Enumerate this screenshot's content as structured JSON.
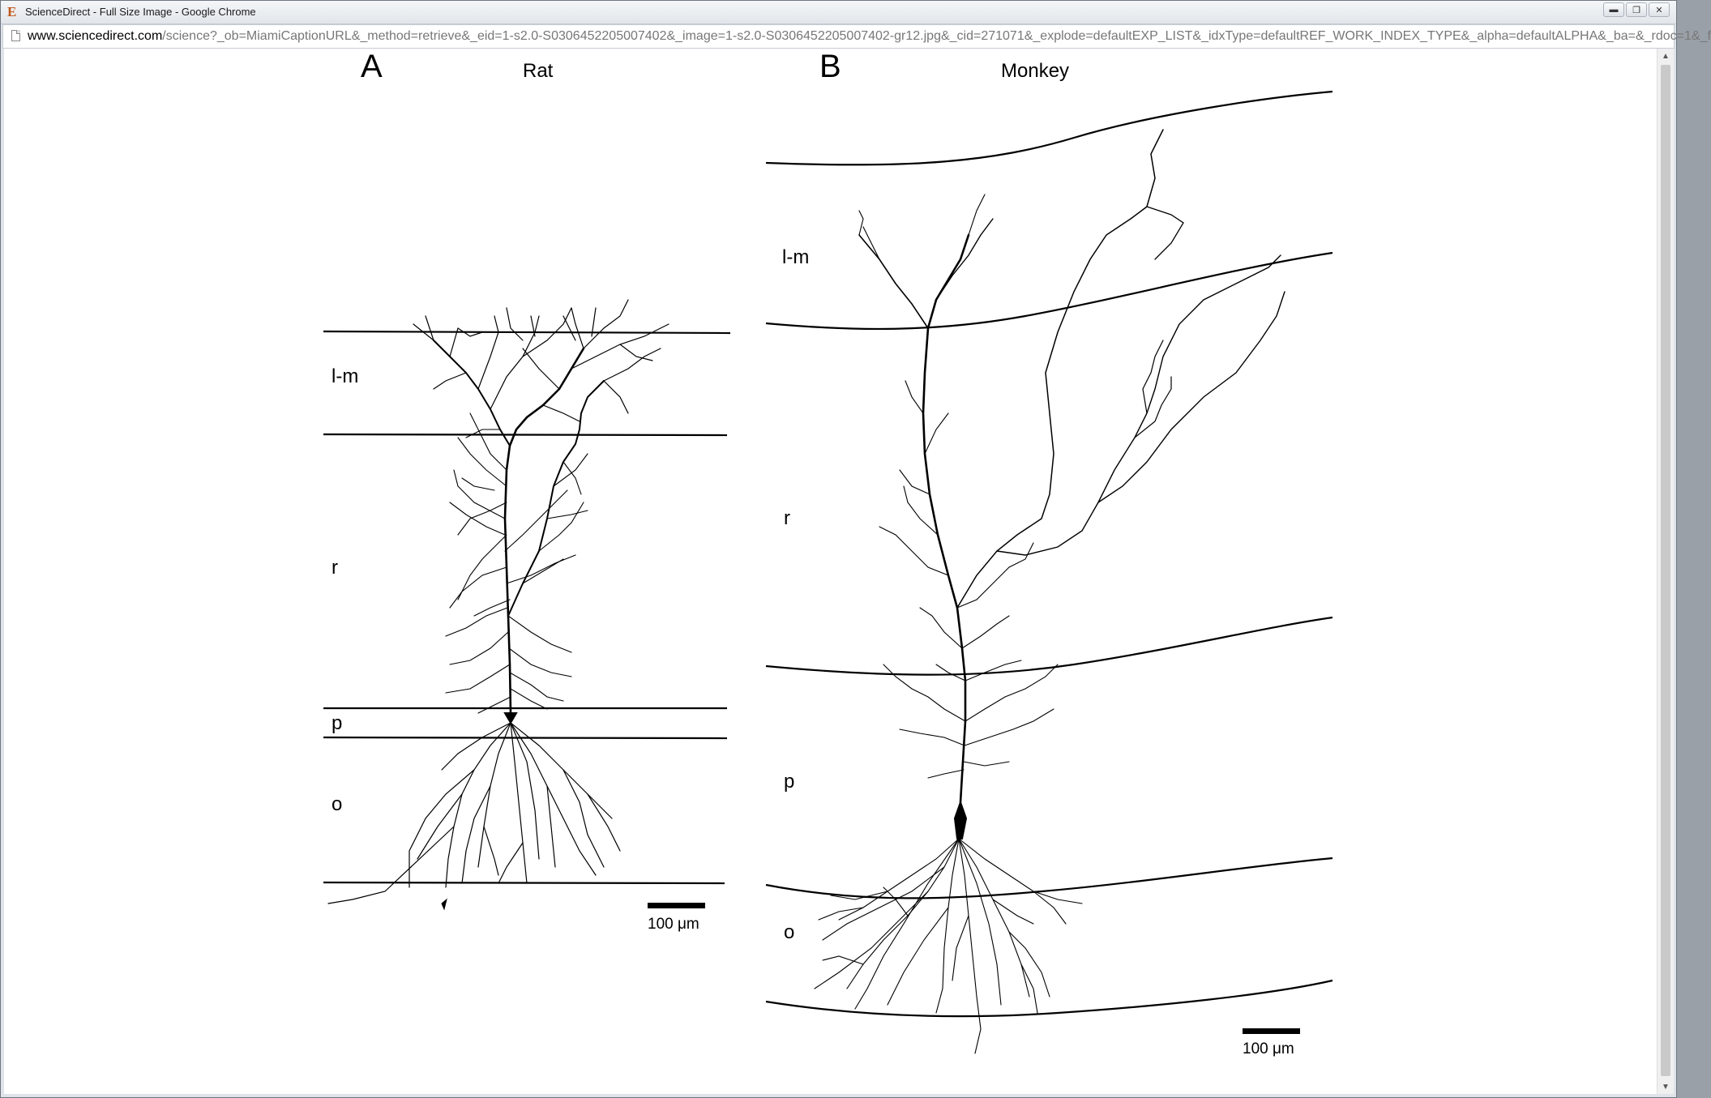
{
  "window": {
    "title": "ScienceDirect - Full Size Image - Google Chrome",
    "app_icon": "E",
    "minimize_icon": "minimize-icon",
    "restore_icon": "restore-icon",
    "close_icon": "close-icon"
  },
  "address_bar": {
    "host": "www.sciencedirect.com",
    "path": "/science?_ob=MiamiCaptionURL&_method=retrieve&_eid=1-s2.0-S0306452205007402&_image=1-s2.0-S0306452205007402-gr12.jpg&_cid=271071&_explode=defaultEXP_LIST&_idxType=defaultREF_WORK_INDEX_TYPE&_alpha=defaultALPHA&_ba=&_rdoc=1&_f"
  },
  "figure": {
    "panel_a": {
      "letter": "A",
      "species": "Rat",
      "layers": [
        "l-m",
        "r",
        "p",
        "o"
      ],
      "scale_bar": "100 μm"
    },
    "panel_b": {
      "letter": "B",
      "species": "Monkey",
      "layers": [
        "l-m",
        "r",
        "p",
        "o"
      ],
      "scale_bar": "100 μm"
    }
  }
}
